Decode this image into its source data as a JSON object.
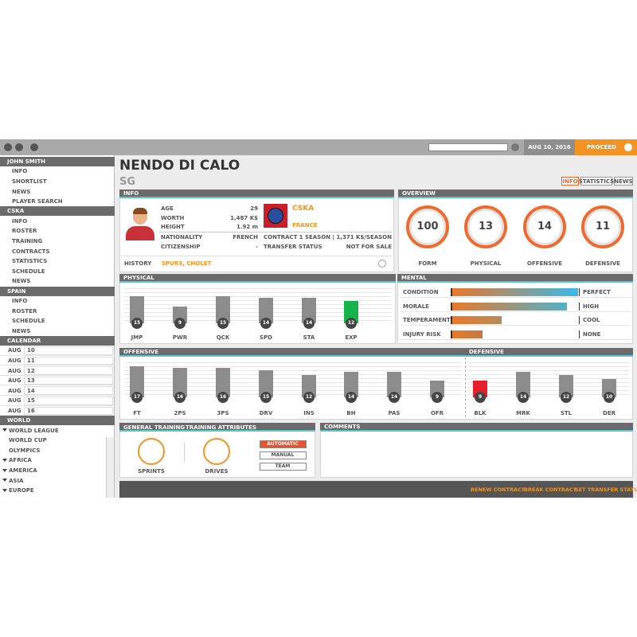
{
  "topbar": {
    "date": "AUG 10, 2016",
    "proceed": "PROCEED"
  },
  "sidebar": [
    {
      "title": "JOHN SMITH",
      "items": [
        "INFO",
        "SHORTLIST",
        "NEWS",
        "PLAYER SEARCH"
      ]
    },
    {
      "title": "CSKA",
      "items": [
        "INFO",
        "ROSTER",
        "TRAINING",
        "CONTRACTS",
        "STATISTICS",
        "SCHEDULE",
        "NEWS"
      ]
    },
    {
      "title": "SPAIN",
      "items": [
        "INFO",
        "ROSTER",
        "SCHEDULE",
        "NEWS"
      ]
    },
    {
      "title": "CALENDAR",
      "items": [
        {
          "month": "AUG",
          "day": 10
        },
        {
          "month": "AUG",
          "day": 11
        },
        {
          "month": "AUG",
          "day": 12
        },
        {
          "month": "AUG",
          "day": 13
        },
        {
          "month": "AUG",
          "day": 14
        },
        {
          "month": "AUG",
          "day": 15
        },
        {
          "month": "AUG",
          "day": 16
        }
      ]
    },
    {
      "title": "WORLD",
      "items": [
        {
          "label": "WORLD LEAGUE",
          "children": [
            "WORLD CUP",
            "OLYMPICS"
          ]
        },
        {
          "label": "AFRICA"
        },
        {
          "label": "AMERICA"
        },
        {
          "label": "ASIA"
        },
        {
          "label": "EUROPE"
        }
      ]
    }
  ],
  "player": {
    "name": "NENDO DI CALO",
    "position": "SG",
    "tabs": [
      "INFO",
      "STATISTICS",
      "NEWS"
    ],
    "active_tab": 0
  },
  "info": {
    "title": "INFO",
    "fields": [
      {
        "label": "AGE",
        "value": 29
      },
      {
        "label": "WORTH",
        "value": "1,487 K$"
      },
      {
        "label": "HEIGHT",
        "value": "1.92 m"
      }
    ],
    "details_left": [
      {
        "label": "NATIONALITY",
        "value": "FRENCH"
      },
      {
        "label": "CITIZENSHIP",
        "value": "-"
      }
    ],
    "details_right": [
      {
        "label": "CONTRACT",
        "value": "1 SEASON | 1,371 K$/SEASON"
      },
      {
        "label": "TRANSFER STATUS",
        "value": "NOT FOR SALE"
      }
    ],
    "team": "CSKA",
    "country": "FRANCE",
    "history": {
      "label": "HISTORY",
      "value": "SPURS, CHOLET"
    }
  },
  "overview": {
    "title": "OVERVIEW",
    "items": [
      {
        "label": "FORM",
        "value": 100
      },
      {
        "label": "PHYSICAL",
        "value": 13
      },
      {
        "label": "OFFENSIVE",
        "value": 14
      },
      {
        "label": "DEFENSIVE",
        "value": 11
      }
    ]
  },
  "physical": {
    "title": "PHYSICAL",
    "stats": [
      {
        "label": "JMP",
        "value": 15,
        "color": "#8c8c8c"
      },
      {
        "label": "PWR",
        "value": 9,
        "color": "#8c8c8c"
      },
      {
        "label": "QCK",
        "value": 15,
        "color": "#8c8c8c"
      },
      {
        "label": "SPD",
        "value": 14,
        "color": "#8c8c8c"
      },
      {
        "label": "STA",
        "value": 14,
        "color": "#8c8c8c"
      },
      {
        "label": "EXP",
        "value": 12,
        "color": "#17b34a"
      }
    ]
  },
  "mental": {
    "title": "MENTAL",
    "items": [
      {
        "label": "CONDITION",
        "value": "PERFECT",
        "level": 100,
        "gradient": [
          "#e8792c",
          "#3bb8e6"
        ]
      },
      {
        "label": "MORALE",
        "value": "HIGH",
        "level": 91,
        "gradient": [
          "#e8792c",
          "#4fb3c8"
        ]
      },
      {
        "label": "TEMPERAMENT",
        "value": "COOL",
        "level": 40,
        "gradient": [
          "#e8792c",
          "#b88a5a"
        ]
      },
      {
        "label": "INJURY RISK",
        "value": "NONE",
        "level": 25,
        "gradient": [
          "#e8792c",
          "#c27a44"
        ]
      }
    ]
  },
  "offensive": {
    "title": "OFFENSIVE",
    "stats": [
      {
        "label": "FT",
        "value": 17,
        "color": "#8c8c8c"
      },
      {
        "label": "2PS",
        "value": 16,
        "color": "#8c8c8c"
      },
      {
        "label": "3PS",
        "value": 16,
        "color": "#8c8c8c"
      },
      {
        "label": "DRV",
        "value": 15,
        "color": "#8c8c8c"
      },
      {
        "label": "INS",
        "value": 12,
        "color": "#8c8c8c"
      },
      {
        "label": "BH",
        "value": 14,
        "color": "#8c8c8c"
      },
      {
        "label": "PAS",
        "value": 14,
        "color": "#8c8c8c"
      },
      {
        "label": "OFR",
        "value": 9,
        "color": "#8c8c8c"
      }
    ]
  },
  "defensive": {
    "title": "DEFENSIVE",
    "stats": [
      {
        "label": "BLK",
        "value": 9,
        "color": "#e8202a"
      },
      {
        "label": "MRK",
        "value": 14,
        "color": "#8c8c8c"
      },
      {
        "label": "STL",
        "value": 12,
        "color": "#8c8c8c"
      },
      {
        "label": "DER",
        "value": 10,
        "color": "#8c8c8c"
      }
    ]
  },
  "training": {
    "title": "GENERAL TRAINING",
    "attributes_title": "TRAINING ATTRIBUTES",
    "drills": [
      "SPRINTS",
      "DRIVES"
    ],
    "modes": [
      "AUTOMATIC",
      "MANUAL",
      "TEAM"
    ],
    "active_mode": 0
  },
  "comments": {
    "title": "COMMENTS"
  },
  "actions": [
    "RENEW CONTRACT",
    "BREAK CONTRACT",
    "SET TRANSFER STATUS"
  ]
}
